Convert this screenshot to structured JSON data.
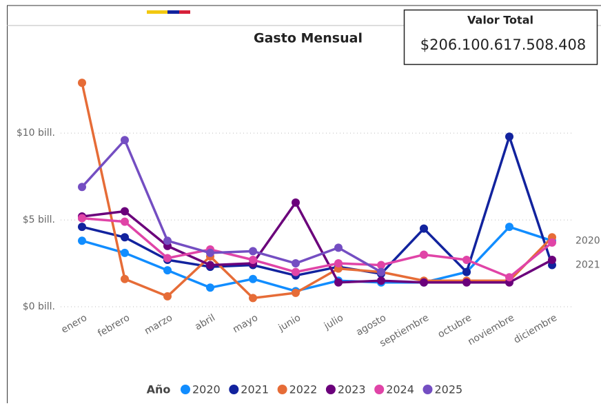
{
  "chart_data": {
    "type": "line",
    "title": "Gasto Mensual",
    "card": {
      "label": "Valor Total",
      "value": "$206.100.617.508.408"
    },
    "legend_title": "Año",
    "categories": [
      "enero",
      "febrero",
      "marzo",
      "abril",
      "mayo",
      "junio",
      "julio",
      "agosto",
      "septiembre",
      "octubre",
      "noviembre",
      "diciembre"
    ],
    "series": [
      {
        "name": "2020",
        "color": "#118DFF",
        "values": [
          3.8,
          3.1,
          2.1,
          1.1,
          1.6,
          0.9,
          1.5,
          1.4,
          1.4,
          2.0,
          4.6,
          3.8
        ]
      },
      {
        "name": "2021",
        "color": "#12239E",
        "values": [
          4.6,
          4.0,
          2.7,
          2.3,
          2.4,
          1.8,
          2.3,
          1.9,
          4.5,
          2.0,
          9.8,
          2.4
        ]
      },
      {
        "name": "2022",
        "color": "#E66C37",
        "values": [
          12.9,
          1.6,
          0.6,
          2.9,
          0.5,
          0.8,
          2.2,
          2.0,
          1.5,
          1.5,
          1.5,
          4.0
        ]
      },
      {
        "name": "2023",
        "color": "#6B007B",
        "values": [
          5.2,
          5.5,
          3.5,
          2.4,
          2.5,
          6.0,
          1.4,
          1.5,
          1.4,
          1.4,
          1.4,
          2.7
        ]
      },
      {
        "name": "2024",
        "color": "#E044A7",
        "values": [
          5.1,
          4.9,
          2.8,
          3.3,
          2.7,
          2.0,
          2.5,
          2.4,
          3.0,
          2.7,
          1.7,
          3.7
        ]
      },
      {
        "name": "2025",
        "color": "#744EC2",
        "values": [
          6.9,
          9.6,
          3.8,
          3.1,
          3.2,
          2.5,
          3.4,
          2.0,
          null,
          null,
          null,
          null
        ]
      }
    ],
    "end_labels": [
      0,
      1
    ],
    "ylim": [
      0,
      13.7
    ],
    "yticks": [
      {
        "value": 0,
        "label": "$0 bill."
      },
      {
        "value": 5,
        "label": "$5 bill."
      },
      {
        "value": 10,
        "label": "$10 bill."
      }
    ],
    "grid": true
  }
}
